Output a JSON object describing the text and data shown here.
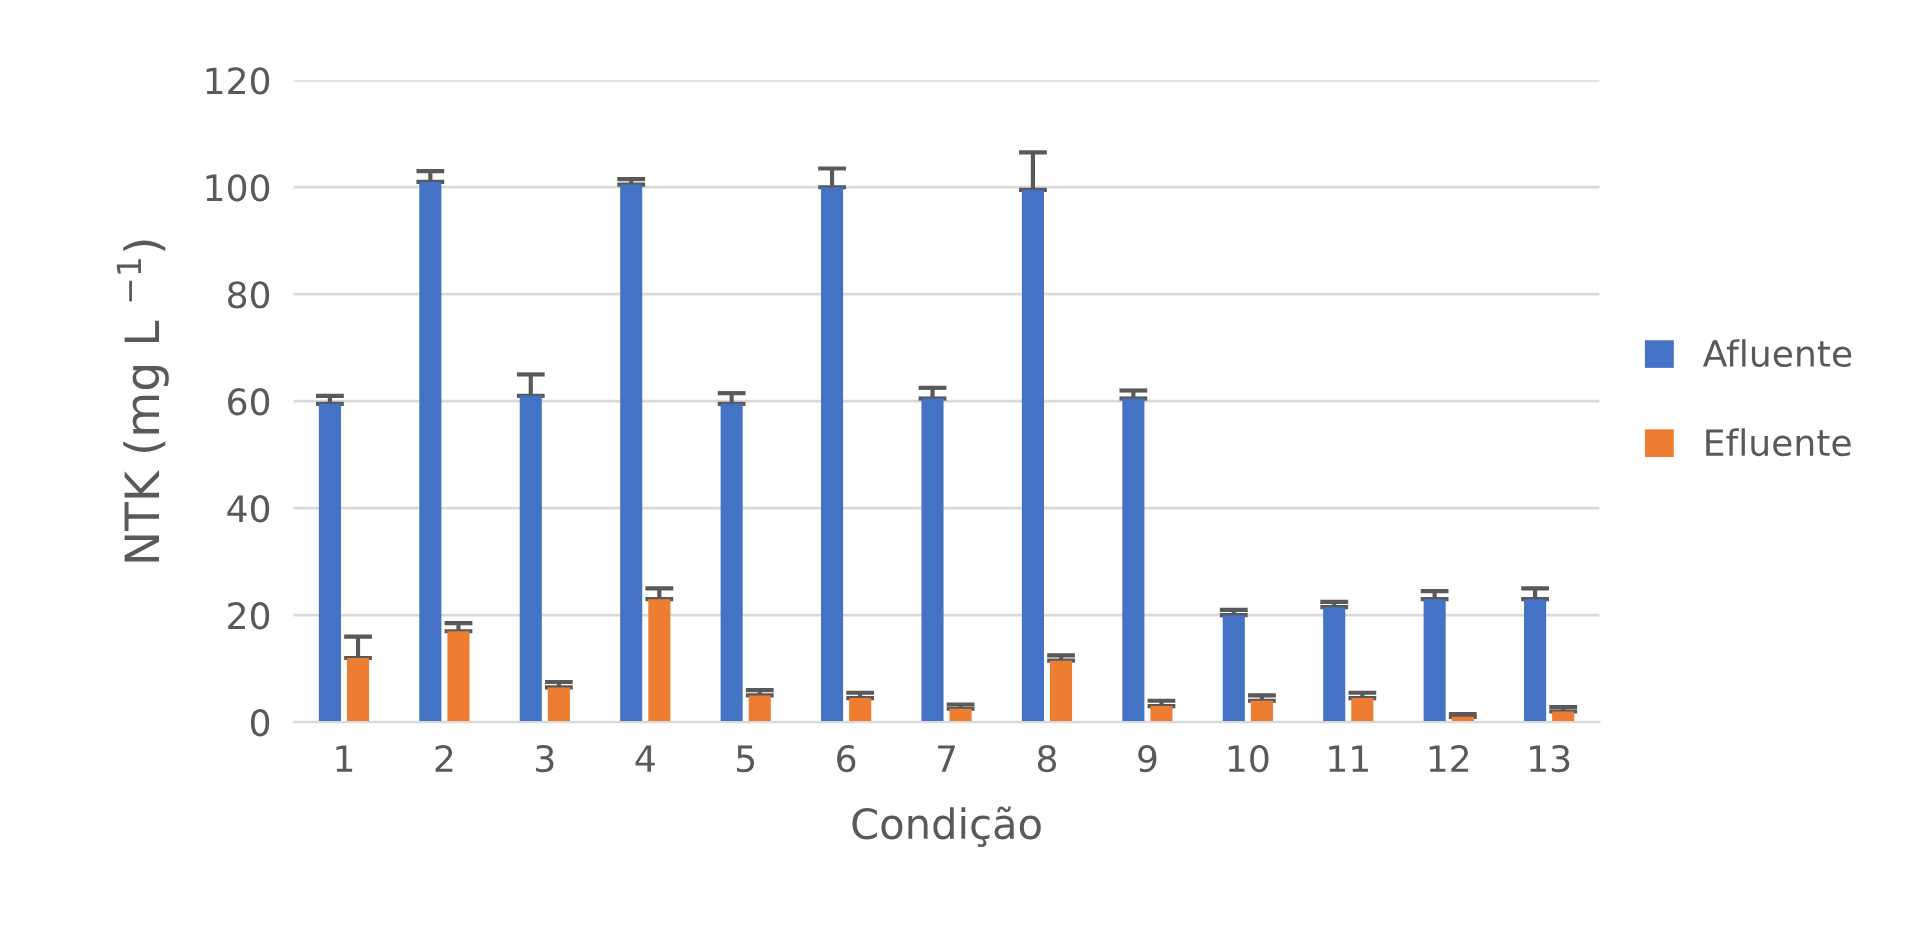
{
  "chart_data": {
    "type": "bar",
    "xlabel": "Condição",
    "ylabel": "NTK (mg L $^{−1}$)",
    "categories": [
      "1",
      "2",
      "3",
      "4",
      "5",
      "6",
      "7",
      "8",
      "9",
      "10",
      "11",
      "12",
      "13"
    ],
    "series": [
      {
        "name": "Afluente",
        "color": "#4472c4",
        "values": [
          59.5,
          101,
          61,
          100.5,
          59.5,
          100,
          60.5,
          99.5,
          60.5,
          20,
          21.5,
          23,
          23
        ],
        "errors": [
          1.5,
          2,
          4,
          1,
          2,
          3.5,
          2,
          7,
          1.5,
          1,
          1,
          1.5,
          2
        ]
      },
      {
        "name": "Efluente",
        "color": "#ed7d31",
        "values": [
          12,
          17,
          6.5,
          23,
          5,
          4.5,
          2.5,
          11.5,
          3,
          4,
          4.5,
          1,
          2
        ],
        "errors": [
          4,
          1.5,
          1,
          2,
          1,
          1,
          0.8,
          1,
          1,
          1,
          1,
          0.5,
          0.8
        ]
      }
    ],
    "ylim": [
      0,
      120
    ],
    "yticks": [
      0,
      20,
      40,
      60,
      80,
      100,
      120
    ],
    "grid": "y",
    "legend": "right"
  }
}
